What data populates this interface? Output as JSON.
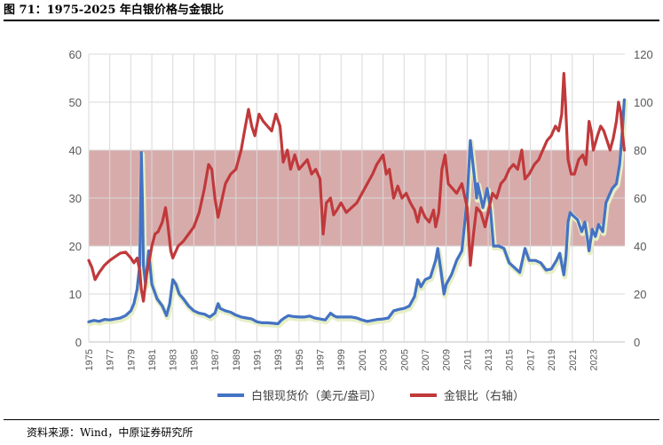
{
  "title": "图 71：1975-2025 年白银价格与金银比",
  "source": "资料来源：Wind，中原证券研究所",
  "chart_data": {
    "type": "line",
    "title": "图 71：1975-2025 年白银价格与金银比",
    "x_ticks": [
      "1975",
      "1977",
      "1979",
      "1981",
      "1983",
      "1985",
      "1987",
      "1989",
      "1991",
      "1993",
      "1995",
      "1997",
      "1999",
      "2001",
      "2003",
      "2005",
      "2007",
      "2009",
      "2011",
      "2013",
      "2015",
      "2017",
      "2019",
      "2021",
      "2023"
    ],
    "y_left": {
      "range": [
        0,
        60
      ],
      "ticks": [
        "0",
        "10",
        "20",
        "30",
        "40",
        "50",
        "60"
      ]
    },
    "y_right": {
      "range": [
        0,
        120
      ],
      "ticks": [
        "0",
        "20",
        "40",
        "60",
        "80",
        "100",
        "120"
      ]
    },
    "shaded_band_right_axis": [
      40,
      80
    ],
    "grid": "vertical lines at x ticks, horizontal lines at y ticks",
    "legend_position": "bottom",
    "colors": {
      "silver": "#4472C4",
      "ratio": "#C0393B",
      "band": "#C98A8A"
    },
    "series": [
      {
        "name": "白银现货价（美元/盎司）",
        "axis": "left",
        "points": [
          [
            1975.0,
            4.2
          ],
          [
            1975.5,
            4.5
          ],
          [
            1976.0,
            4.3
          ],
          [
            1976.5,
            4.7
          ],
          [
            1977.0,
            4.6
          ],
          [
            1977.5,
            4.8
          ],
          [
            1978.0,
            5.0
          ],
          [
            1978.5,
            5.5
          ],
          [
            1979.0,
            6.5
          ],
          [
            1979.3,
            8.0
          ],
          [
            1979.6,
            11.0
          ],
          [
            1979.85,
            16.0
          ],
          [
            1980.0,
            39.5
          ],
          [
            1980.1,
            30.0
          ],
          [
            1980.2,
            16.0
          ],
          [
            1980.4,
            12.0
          ],
          [
            1980.7,
            19.0
          ],
          [
            1981.0,
            12.0
          ],
          [
            1981.5,
            9.0
          ],
          [
            1982.0,
            7.5
          ],
          [
            1982.4,
            5.5
          ],
          [
            1982.7,
            8.0
          ],
          [
            1983.0,
            13.0
          ],
          [
            1983.3,
            12.0
          ],
          [
            1983.6,
            10.0
          ],
          [
            1984.0,
            9.0
          ],
          [
            1984.5,
            7.5
          ],
          [
            1985.0,
            6.5
          ],
          [
            1985.5,
            6.0
          ],
          [
            1986.0,
            5.8
          ],
          [
            1986.5,
            5.2
          ],
          [
            1987.0,
            6.0
          ],
          [
            1987.3,
            8.0
          ],
          [
            1987.5,
            7.0
          ],
          [
            1988.0,
            6.5
          ],
          [
            1988.5,
            6.2
          ],
          [
            1989.0,
            5.6
          ],
          [
            1989.5,
            5.2
          ],
          [
            1990.0,
            5.0
          ],
          [
            1990.5,
            4.8
          ],
          [
            1991.0,
            4.2
          ],
          [
            1991.5,
            4.0
          ],
          [
            1992.0,
            4.0
          ],
          [
            1992.5,
            3.9
          ],
          [
            1993.0,
            3.8
          ],
          [
            1993.3,
            4.5
          ],
          [
            1993.6,
            5.0
          ],
          [
            1994.0,
            5.5
          ],
          [
            1994.5,
            5.3
          ],
          [
            1995.0,
            5.2
          ],
          [
            1995.5,
            5.2
          ],
          [
            1996.0,
            5.4
          ],
          [
            1996.5,
            5.0
          ],
          [
            1997.0,
            4.8
          ],
          [
            1997.5,
            4.6
          ],
          [
            1998.0,
            6.0
          ],
          [
            1998.3,
            5.5
          ],
          [
            1998.6,
            5.2
          ],
          [
            1999.0,
            5.2
          ],
          [
            1999.5,
            5.2
          ],
          [
            2000.0,
            5.2
          ],
          [
            2000.5,
            5.0
          ],
          [
            2001.0,
            4.6
          ],
          [
            2001.5,
            4.3
          ],
          [
            2002.0,
            4.5
          ],
          [
            2002.5,
            4.7
          ],
          [
            2003.0,
            4.8
          ],
          [
            2003.5,
            5.0
          ],
          [
            2004.0,
            6.5
          ],
          [
            2004.5,
            6.8
          ],
          [
            2005.0,
            7.0
          ],
          [
            2005.5,
            7.5
          ],
          [
            2006.0,
            9.5
          ],
          [
            2006.3,
            13.0
          ],
          [
            2006.6,
            11.5
          ],
          [
            2007.0,
            13.0
          ],
          [
            2007.5,
            13.5
          ],
          [
            2008.0,
            17.0
          ],
          [
            2008.2,
            19.5
          ],
          [
            2008.5,
            15.0
          ],
          [
            2008.8,
            10.0
          ],
          [
            2009.0,
            12.0
          ],
          [
            2009.5,
            14.0
          ],
          [
            2010.0,
            17.0
          ],
          [
            2010.5,
            19.0
          ],
          [
            2011.0,
            30.0
          ],
          [
            2011.3,
            42.0
          ],
          [
            2011.6,
            36.0
          ],
          [
            2011.9,
            30.0
          ],
          [
            2012.0,
            33.0
          ],
          [
            2012.5,
            28.0
          ],
          [
            2012.9,
            32.0
          ],
          [
            2013.2,
            28.0
          ],
          [
            2013.5,
            20.0
          ],
          [
            2014.0,
            20.0
          ],
          [
            2014.5,
            19.5
          ],
          [
            2015.0,
            16.5
          ],
          [
            2015.5,
            15.5
          ],
          [
            2016.0,
            14.5
          ],
          [
            2016.5,
            19.5
          ],
          [
            2016.9,
            17.0
          ],
          [
            2017.5,
            17.0
          ],
          [
            2018.0,
            16.5
          ],
          [
            2018.5,
            15.0
          ],
          [
            2019.0,
            15.2
          ],
          [
            2019.5,
            17.0
          ],
          [
            2019.8,
            18.5
          ],
          [
            2020.2,
            14.0
          ],
          [
            2020.4,
            18.0
          ],
          [
            2020.6,
            25.0
          ],
          [
            2020.8,
            27.0
          ],
          [
            2021.0,
            26.5
          ],
          [
            2021.5,
            25.5
          ],
          [
            2021.9,
            23.0
          ],
          [
            2022.2,
            25.0
          ],
          [
            2022.6,
            19.0
          ],
          [
            2022.9,
            23.5
          ],
          [
            2023.2,
            22.0
          ],
          [
            2023.5,
            24.5
          ],
          [
            2023.9,
            23.0
          ],
          [
            2024.2,
            29.0
          ],
          [
            2024.5,
            30.5
          ],
          [
            2024.8,
            32.0
          ],
          [
            2025.2,
            33.0
          ],
          [
            2025.5,
            37.0
          ],
          [
            2025.8,
            45.0
          ],
          [
            2025.95,
            50.5
          ]
        ]
      },
      {
        "name": "金银比（右轴）",
        "axis": "right",
        "points": [
          [
            1975.0,
            34.0
          ],
          [
            1975.3,
            31.0
          ],
          [
            1975.6,
            26.0
          ],
          [
            1976.0,
            29.0
          ],
          [
            1976.5,
            32.0
          ],
          [
            1977.0,
            34.0
          ],
          [
            1977.5,
            35.5
          ],
          [
            1978.0,
            37.0
          ],
          [
            1978.5,
            37.5
          ],
          [
            1979.0,
            35.0
          ],
          [
            1979.3,
            33.0
          ],
          [
            1979.6,
            35.0
          ],
          [
            1979.85,
            30.0
          ],
          [
            1980.0,
            22.0
          ],
          [
            1980.2,
            17.0
          ],
          [
            1980.5,
            28.0
          ],
          [
            1980.8,
            35.0
          ],
          [
            1981.0,
            40.0
          ],
          [
            1981.3,
            45.0
          ],
          [
            1981.6,
            46.0
          ],
          [
            1982.0,
            50.0
          ],
          [
            1982.3,
            56.0
          ],
          [
            1982.5,
            50.0
          ],
          [
            1982.8,
            38.0
          ],
          [
            1983.0,
            35.0
          ],
          [
            1983.5,
            40.0
          ],
          [
            1984.0,
            42.0
          ],
          [
            1984.5,
            45.0
          ],
          [
            1985.0,
            48.0
          ],
          [
            1985.5,
            54.0
          ],
          [
            1986.0,
            64.0
          ],
          [
            1986.4,
            74.0
          ],
          [
            1986.7,
            72.0
          ],
          [
            1987.0,
            60.0
          ],
          [
            1987.3,
            52.0
          ],
          [
            1987.7,
            60.0
          ],
          [
            1988.0,
            66.0
          ],
          [
            1988.5,
            70.0
          ],
          [
            1989.0,
            72.0
          ],
          [
            1989.5,
            80.0
          ],
          [
            1989.9,
            90.0
          ],
          [
            1990.2,
            97.0
          ],
          [
            1990.5,
            90.0
          ],
          [
            1990.8,
            86.0
          ],
          [
            1991.2,
            95.0
          ],
          [
            1991.6,
            92.0
          ],
          [
            1992.0,
            90.0
          ],
          [
            1992.4,
            88.0
          ],
          [
            1992.8,
            95.0
          ],
          [
            1993.2,
            90.0
          ],
          [
            1993.5,
            75.0
          ],
          [
            1993.9,
            80.0
          ],
          [
            1994.2,
            72.0
          ],
          [
            1994.6,
            78.0
          ],
          [
            1995.0,
            72.0
          ],
          [
            1995.4,
            74.0
          ],
          [
            1995.8,
            76.0
          ],
          [
            1996.2,
            70.0
          ],
          [
            1996.6,
            72.0
          ],
          [
            1997.0,
            68.0
          ],
          [
            1997.3,
            45.0
          ],
          [
            1997.6,
            58.0
          ],
          [
            1998.0,
            60.0
          ],
          [
            1998.3,
            53.0
          ],
          [
            1998.6,
            55.0
          ],
          [
            1999.0,
            58.0
          ],
          [
            1999.5,
            54.0
          ],
          [
            2000.0,
            56.0
          ],
          [
            2000.5,
            58.0
          ],
          [
            2001.0,
            62.0
          ],
          [
            2001.5,
            66.0
          ],
          [
            2002.0,
            70.0
          ],
          [
            2002.4,
            74.0
          ],
          [
            2002.7,
            76.0
          ],
          [
            2003.0,
            78.0
          ],
          [
            2003.3,
            70.0
          ],
          [
            2003.6,
            72.0
          ],
          [
            2004.0,
            60.0
          ],
          [
            2004.4,
            65.0
          ],
          [
            2004.8,
            60.0
          ],
          [
            2005.2,
            62.0
          ],
          [
            2005.6,
            58.0
          ],
          [
            2006.0,
            55.0
          ],
          [
            2006.3,
            50.0
          ],
          [
            2006.6,
            56.0
          ],
          [
            2007.0,
            52.0
          ],
          [
            2007.4,
            50.0
          ],
          [
            2007.8,
            55.0
          ],
          [
            2008.0,
            48.0
          ],
          [
            2008.3,
            54.0
          ],
          [
            2008.6,
            72.0
          ],
          [
            2008.9,
            78.0
          ],
          [
            2009.2,
            66.0
          ],
          [
            2009.6,
            64.0
          ],
          [
            2010.0,
            62.0
          ],
          [
            2010.5,
            66.0
          ],
          [
            2011.0,
            56.0
          ],
          [
            2011.3,
            32.0
          ],
          [
            2011.6,
            45.0
          ],
          [
            2011.9,
            56.0
          ],
          [
            2012.3,
            54.0
          ],
          [
            2012.7,
            48.0
          ],
          [
            2013.0,
            54.0
          ],
          [
            2013.4,
            62.0
          ],
          [
            2013.8,
            60.0
          ],
          [
            2014.2,
            66.0
          ],
          [
            2014.6,
            68.0
          ],
          [
            2015.0,
            72.0
          ],
          [
            2015.4,
            74.0
          ],
          [
            2015.8,
            72.0
          ],
          [
            2016.2,
            80.0
          ],
          [
            2016.5,
            68.0
          ],
          [
            2016.9,
            70.0
          ],
          [
            2017.4,
            74.0
          ],
          [
            2017.8,
            76.0
          ],
          [
            2018.2,
            80.0
          ],
          [
            2018.6,
            84.0
          ],
          [
            2019.0,
            86.0
          ],
          [
            2019.4,
            90.0
          ],
          [
            2019.7,
            88.0
          ],
          [
            2020.0,
            95.0
          ],
          [
            2020.2,
            112.0
          ],
          [
            2020.35,
            100.0
          ],
          [
            2020.6,
            76.0
          ],
          [
            2020.9,
            70.0
          ],
          [
            2021.2,
            70.0
          ],
          [
            2021.6,
            76.0
          ],
          [
            2022.0,
            78.0
          ],
          [
            2022.3,
            74.0
          ],
          [
            2022.6,
            92.0
          ],
          [
            2022.8,
            88.0
          ],
          [
            2023.0,
            80.0
          ],
          [
            2023.4,
            86.0
          ],
          [
            2023.7,
            90.0
          ],
          [
            2024.0,
            88.0
          ],
          [
            2024.3,
            84.0
          ],
          [
            2024.6,
            80.0
          ],
          [
            2024.9,
            85.0
          ],
          [
            2025.2,
            92.0
          ],
          [
            2025.4,
            100.0
          ],
          [
            2025.6,
            96.0
          ],
          [
            2025.8,
            86.0
          ],
          [
            2025.95,
            80.0
          ]
        ]
      }
    ]
  }
}
